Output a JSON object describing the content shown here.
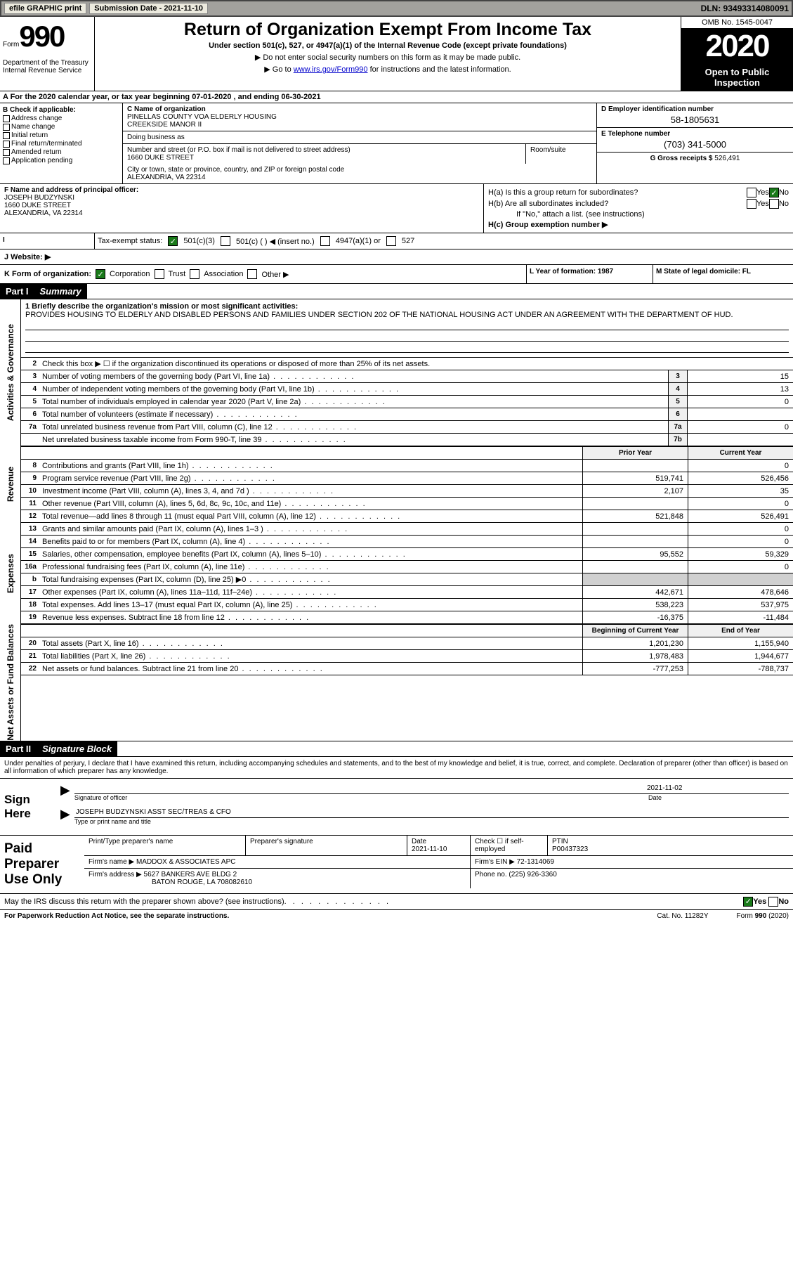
{
  "topbar": {
    "efile": "efile GRAPHIC print",
    "submission": "Submission Date - 2021-11-10",
    "dln": "DLN: 93493314080091"
  },
  "header": {
    "form_prefix": "Form",
    "form_number": "990",
    "title": "Return of Organization Exempt From Income Tax",
    "subtitle": "Under section 501(c), 527, or 4947(a)(1) of the Internal Revenue Code (except private foundations)",
    "note1": "▶ Do not enter social security numbers on this form as it may be made public.",
    "note2_prefix": "▶ Go to ",
    "note2_link": "www.irs.gov/Form990",
    "note2_suffix": " for instructions and the latest information.",
    "dept": "Department of the Treasury\nInternal Revenue Service",
    "omb": "OMB No. 1545-0047",
    "year": "2020",
    "open": "Open to Public Inspection"
  },
  "rowA": "A For the 2020 calendar year, or tax year beginning 07-01-2020    , and ending 06-30-2021",
  "boxB": {
    "label": "B Check if applicable:",
    "items": [
      "Address change",
      "Name change",
      "Initial return",
      "Final return/terminated",
      "Amended return",
      "Application pending"
    ]
  },
  "boxC": {
    "name_label": "C Name of organization",
    "name": "PINELLAS COUNTY VOA ELDERLY HOUSING\nCREEKSIDE MANOR II",
    "dba_label": "Doing business as",
    "addr_label": "Number and street (or P.O. box if mail is not delivered to street address)",
    "addr": "1660 DUKE STREET",
    "room_label": "Room/suite",
    "city_label": "City or town, state or province, country, and ZIP or foreign postal code",
    "city": "ALEXANDRIA, VA  22314"
  },
  "boxD": {
    "label": "D Employer identification number",
    "value": "58-1805631"
  },
  "boxE": {
    "label": "E Telephone number",
    "value": "(703) 341-5000"
  },
  "boxG": {
    "label": "G Gross receipts $",
    "value": "526,491"
  },
  "boxF": {
    "label": "F Name and address of principal officer:",
    "name": "JOSEPH BUDZYNSKI",
    "addr1": "1660 DUKE STREET",
    "addr2": "ALEXANDRIA, VA  22314"
  },
  "boxH": {
    "a": "H(a)  Is this a group return for subordinates?",
    "b": "H(b)  Are all subordinates included?",
    "b_note": "If \"No,\" attach a list. (see instructions)",
    "c": "H(c)  Group exemption number ▶",
    "yes": "Yes",
    "no": "No"
  },
  "boxI": {
    "label": "Tax-exempt status:",
    "opts": [
      "501(c)(3)",
      "501(c) (  ) ◀ (insert no.)",
      "4947(a)(1) or",
      "527"
    ]
  },
  "boxJ": "J  Website: ▶",
  "boxK": {
    "label": "K Form of organization:",
    "opts": [
      "Corporation",
      "Trust",
      "Association",
      "Other ▶"
    ]
  },
  "boxL": "L Year of formation: 1987",
  "boxM": "M State of legal domicile: FL",
  "part1": {
    "num": "Part I",
    "title": "Summary"
  },
  "summary": {
    "line1_label": "1  Briefly describe the organization's mission or most significant activities:",
    "line1_text": "PROVIDES HOUSING TO ELDERLY AND DISABLED PERSONS AND FAMILIES UNDER SECTION 202 OF THE NATIONAL HOUSING ACT UNDER AN AGREEMENT WITH THE DEPARTMENT OF HUD.",
    "line2": "Check this box ▶ ☐ if the organization discontinued its operations or disposed of more than 25% of its net assets.",
    "lines_gov": [
      {
        "n": "3",
        "t": "Number of voting members of the governing body (Part VI, line 1a)",
        "b": "3",
        "v": "15"
      },
      {
        "n": "4",
        "t": "Number of independent voting members of the governing body (Part VI, line 1b)",
        "b": "4",
        "v": "13"
      },
      {
        "n": "5",
        "t": "Total number of individuals employed in calendar year 2020 (Part V, line 2a)",
        "b": "5",
        "v": "0"
      },
      {
        "n": "6",
        "t": "Total number of volunteers (estimate if necessary)",
        "b": "6",
        "v": ""
      },
      {
        "n": "7a",
        "t": "Total unrelated business revenue from Part VIII, column (C), line 12",
        "b": "7a",
        "v": "0"
      },
      {
        "n": "",
        "t": "Net unrelated business taxable income from Form 990-T, line 39",
        "b": "7b",
        "v": ""
      }
    ],
    "col_prior": "Prior Year",
    "col_current": "Current Year",
    "revenue": [
      {
        "n": "8",
        "t": "Contributions and grants (Part VIII, line 1h)",
        "p": "",
        "c": "0"
      },
      {
        "n": "9",
        "t": "Program service revenue (Part VIII, line 2g)",
        "p": "519,741",
        "c": "526,456"
      },
      {
        "n": "10",
        "t": "Investment income (Part VIII, column (A), lines 3, 4, and 7d )",
        "p": "2,107",
        "c": "35"
      },
      {
        "n": "11",
        "t": "Other revenue (Part VIII, column (A), lines 5, 6d, 8c, 9c, 10c, and 11e)",
        "p": "",
        "c": "0"
      },
      {
        "n": "12",
        "t": "Total revenue—add lines 8 through 11 (must equal Part VIII, column (A), line 12)",
        "p": "521,848",
        "c": "526,491"
      }
    ],
    "expenses": [
      {
        "n": "13",
        "t": "Grants and similar amounts paid (Part IX, column (A), lines 1–3 )",
        "p": "",
        "c": "0"
      },
      {
        "n": "14",
        "t": "Benefits paid to or for members (Part IX, column (A), line 4)",
        "p": "",
        "c": "0"
      },
      {
        "n": "15",
        "t": "Salaries, other compensation, employee benefits (Part IX, column (A), lines 5–10)",
        "p": "95,552",
        "c": "59,329"
      },
      {
        "n": "16a",
        "t": "Professional fundraising fees (Part IX, column (A), line 11e)",
        "p": "",
        "c": "0"
      },
      {
        "n": "b",
        "t": "Total fundraising expenses (Part IX, column (D), line 25) ▶0",
        "p": "shaded",
        "c": "shaded"
      },
      {
        "n": "17",
        "t": "Other expenses (Part IX, column (A), lines 11a–11d, 11f–24e)",
        "p": "442,671",
        "c": "478,646"
      },
      {
        "n": "18",
        "t": "Total expenses. Add lines 13–17 (must equal Part IX, column (A), line 25)",
        "p": "538,223",
        "c": "537,975"
      },
      {
        "n": "19",
        "t": "Revenue less expenses. Subtract line 18 from line 12",
        "p": "-16,375",
        "c": "-11,484"
      }
    ],
    "col_begin": "Beginning of Current Year",
    "col_end": "End of Year",
    "netassets": [
      {
        "n": "20",
        "t": "Total assets (Part X, line 16)",
        "p": "1,201,230",
        "c": "1,155,940"
      },
      {
        "n": "21",
        "t": "Total liabilities (Part X, line 26)",
        "p": "1,978,483",
        "c": "1,944,677"
      },
      {
        "n": "22",
        "t": "Net assets or fund balances. Subtract line 21 from line 20",
        "p": "-777,253",
        "c": "-788,737"
      }
    ]
  },
  "sides": {
    "gov": "Activities & Governance",
    "rev": "Revenue",
    "exp": "Expenses",
    "net": "Net Assets or Fund Balances"
  },
  "part2": {
    "num": "Part II",
    "title": "Signature Block"
  },
  "penalty": "Under penalties of perjury, I declare that I have examined this return, including accompanying schedules and statements, and to the best of my knowledge and belief, it is true, correct, and complete. Declaration of preparer (other than officer) is based on all information of which preparer has any knowledge.",
  "sign": {
    "label": "Sign Here",
    "sig_label": "Signature of officer",
    "date": "2021-11-02",
    "date_label": "Date",
    "name": "JOSEPH BUDZYNSKI  ASST SEC/TREAS & CFO",
    "name_label": "Type or print name and title"
  },
  "preparer": {
    "label": "Paid Preparer Use Only",
    "h1": "Print/Type preparer's name",
    "h2": "Preparer's signature",
    "h3": "Date",
    "h3v": "2021-11-10",
    "h4": "Check ☐ if self-employed",
    "h5": "PTIN",
    "h5v": "P00437323",
    "firm_name_l": "Firm's name    ▶",
    "firm_name": "MADDOX & ASSOCIATES APC",
    "firm_ein_l": "Firm's EIN ▶",
    "firm_ein": "72-1314069",
    "firm_addr_l": "Firm's address ▶",
    "firm_addr": "5627 BANKERS AVE BLDG 2",
    "firm_addr2": "BATON ROUGE, LA  708082610",
    "phone_l": "Phone no.",
    "phone": "(225) 926-3360"
  },
  "discuss": "May the IRS discuss this return with the preparer shown above? (see instructions)",
  "footer": {
    "pra": "For Paperwork Reduction Act Notice, see the separate instructions.",
    "cat": "Cat. No. 11282Y",
    "form": "Form 990 (2020)"
  }
}
